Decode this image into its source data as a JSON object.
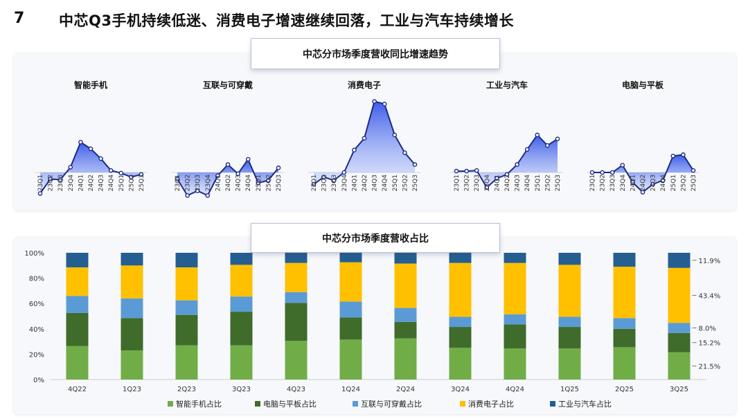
{
  "page": {
    "number": "7",
    "headline": "中芯Q3手机持续低迷、消费电子增速继续回落，工业与汽车持续增长"
  },
  "chart_data": [
    {
      "type": "area",
      "title": "中芯分市场季度营收同比增速趋势",
      "panels": [
        {
          "name": "智能手机",
          "x": [
            "23Q1",
            "23Q2",
            "23Q3",
            "23Q4",
            "24Q1",
            "24Q2",
            "24Q3",
            "24Q4",
            "25Q1",
            "25Q2",
            "25Q3"
          ],
          "values": [
            -32,
            -10,
            -11,
            8,
            46,
            36,
            21,
            3,
            -1,
            -7,
            -3
          ]
        },
        {
          "name": "互联与可穿戴",
          "x": [
            "23Q1",
            "23Q2",
            "23Q3",
            "23Q4",
            "24Q1",
            "24Q2",
            "24Q3",
            "24Q4",
            "25Q1",
            "25Q2",
            "25Q3"
          ],
          "values": [
            -10,
            -35,
            -28,
            -35,
            -5,
            12,
            -2,
            20,
            -16,
            -12,
            7
          ]
        },
        {
          "name": "消费电子",
          "x": [
            "23Q1",
            "23Q2",
            "23Q3",
            "23Q4",
            "24Q1",
            "24Q2",
            "24Q3",
            "24Q4",
            "25Q1",
            "25Q2",
            "25Q3"
          ],
          "values": [
            -18,
            -7,
            -12,
            0,
            34,
            52,
            108,
            104,
            57,
            30,
            12
          ]
        },
        {
          "name": "工业与汽车",
          "x": [
            "23Q1",
            "23Q2",
            "23Q3",
            "23Q4",
            "24Q1",
            "24Q2",
            "24Q3",
            "24Q4",
            "25Q1",
            "25Q2",
            "25Q3"
          ],
          "values": [
            2,
            2,
            3,
            -23,
            -9,
            -3,
            12,
            35,
            57,
            41,
            51
          ]
        },
        {
          "name": "电脑与平板",
          "x": [
            "23Q1",
            "23Q2",
            "23Q3",
            "23Q4",
            "24Q1",
            "24Q2",
            "24Q3",
            "24Q4",
            "25Q1",
            "25Q2",
            "25Q3"
          ],
          "values": [
            0,
            0,
            0,
            11,
            -15,
            -30,
            -18,
            -12,
            25,
            27,
            3
          ]
        }
      ]
    },
    {
      "type": "bar",
      "stacked": true,
      "title": "中芯分市场季度营收占比",
      "categories": [
        "4Q22",
        "1Q23",
        "2Q23",
        "3Q23",
        "4Q23",
        "1Q24",
        "2Q24",
        "3Q24",
        "4Q24",
        "1Q25",
        "2Q25",
        "3Q25"
      ],
      "yticks": [
        "0%",
        "20%",
        "40%",
        "60%",
        "80%",
        "100%"
      ],
      "ylim": [
        0,
        100
      ],
      "series": [
        {
          "name": "智能手机占比",
          "color": "#70ad47",
          "values": [
            26.5,
            23,
            27,
            27,
            30.5,
            31.5,
            32.5,
            25,
            24.5,
            24.5,
            25.5,
            21.5
          ]
        },
        {
          "name": "电脑与平板占比",
          "color": "#3f6b2b",
          "values": [
            26,
            25.5,
            24,
            26.5,
            30,
            17.5,
            13,
            16.5,
            19,
            17,
            14.5,
            15.2
          ]
        },
        {
          "name": "互联与可穿戴占比",
          "color": "#5b9bd5",
          "values": [
            13.5,
            15.5,
            11.5,
            12,
            8.5,
            12.5,
            11,
            8,
            8,
            8,
            8.5,
            8.0
          ]
        },
        {
          "name": "消费电子占比",
          "color": "#ffc000",
          "values": [
            22.5,
            26,
            26,
            25,
            23,
            31,
            35,
            42.5,
            40.5,
            41,
            40.5,
            43.4
          ]
        },
        {
          "name": "工业与汽车占比",
          "color": "#255e91",
          "values": [
            11.5,
            10,
            11.5,
            9.5,
            8,
            7.5,
            8.5,
            8,
            8,
            9.5,
            11,
            11.9
          ]
        }
      ],
      "annotations": [
        "11.9%",
        "43.4%",
        "8.0%",
        "15.2%",
        "21.5%"
      ],
      "legend": "bottom"
    }
  ]
}
